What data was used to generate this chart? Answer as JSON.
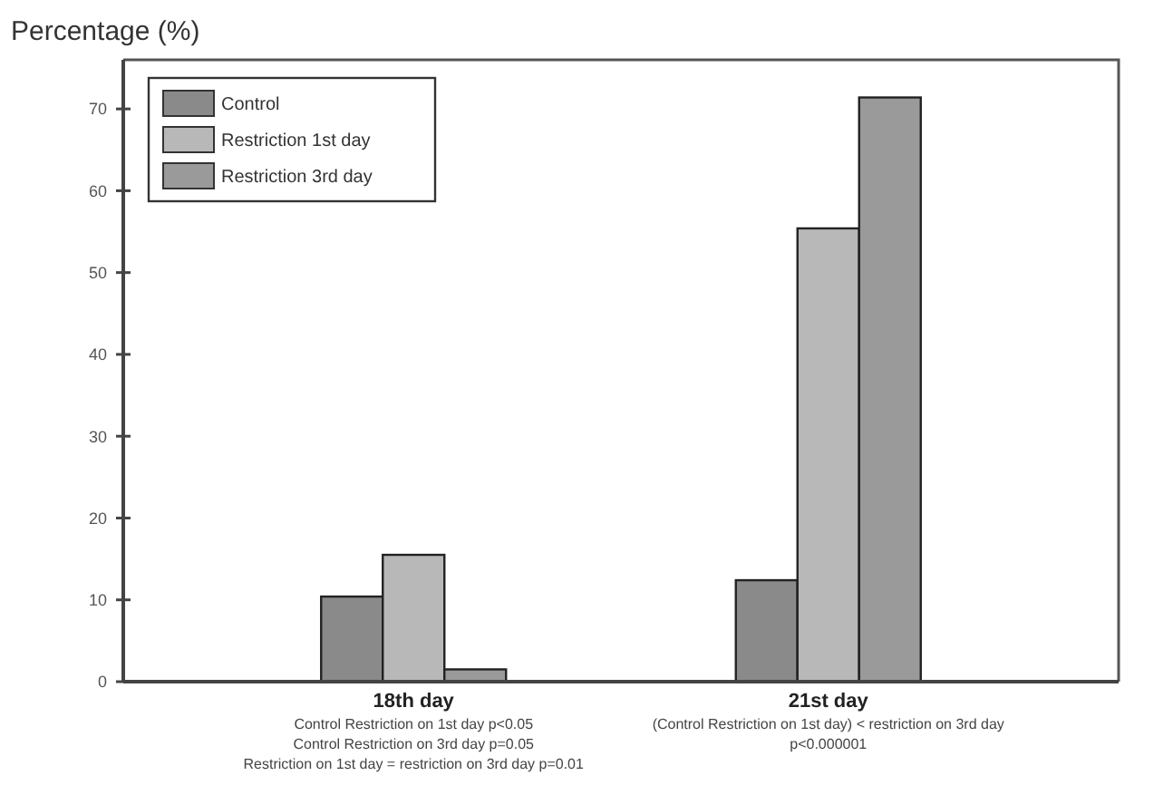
{
  "chart_data": {
    "type": "bar",
    "ylabel": "Percentage (%)",
    "categories": [
      "18th day",
      "21st day"
    ],
    "series": [
      {
        "name": "Control",
        "color": "#8a8a8a",
        "values": [
          10.4,
          12.4
        ]
      },
      {
        "name": "Restriction 1st day",
        "color": "#b8b8b8",
        "values": [
          15.5,
          55.4
        ]
      },
      {
        "name": "Restriction 3rd day",
        "color": "#9a9a9a",
        "values": [
          1.5,
          71.4
        ]
      }
    ],
    "ylim": [
      0,
      76
    ],
    "yticks": [
      0,
      10,
      20,
      30,
      40,
      50,
      60,
      70
    ],
    "grid": false,
    "legend": "top left",
    "annotations": [
      "Control Restriction on 1st day p<0.05",
      "Control Restriction on 3rd day p=0.05",
      "Restriction on 1st day = restriction on 3rd day p=0.01",
      "(Control Restriction on 1st day) < restriction on 3rd day",
      "p<0.000001"
    ]
  }
}
